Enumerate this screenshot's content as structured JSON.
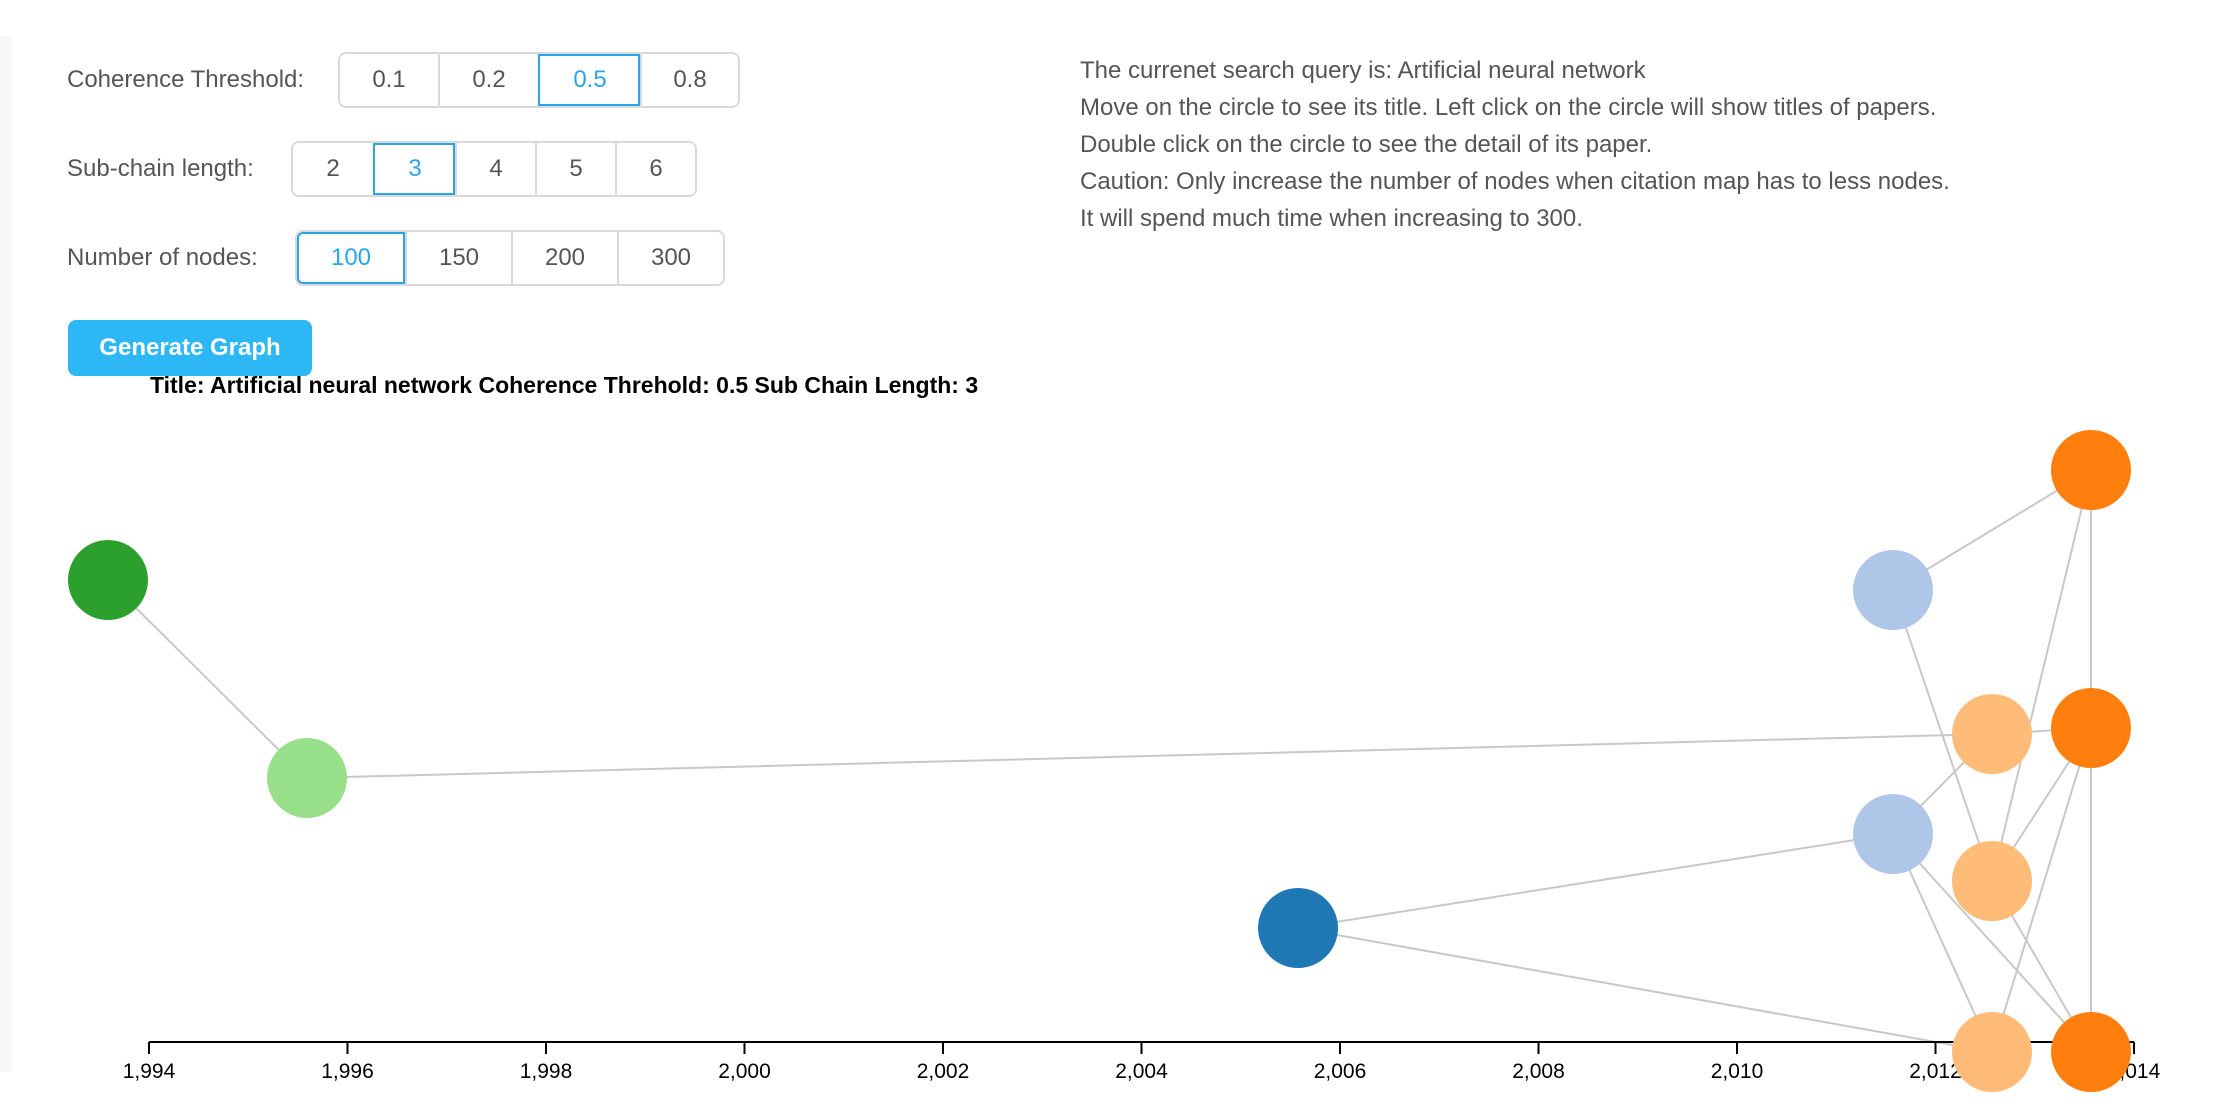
{
  "controls": {
    "coherence": {
      "label": "Coherence Threshold:",
      "options": [
        "0.1",
        "0.2",
        "0.5",
        "0.8"
      ],
      "selected": "0.5"
    },
    "subchain": {
      "label": "Sub-chain length:",
      "options": [
        "2",
        "3",
        "4",
        "5",
        "6"
      ],
      "selected": "3"
    },
    "nodes": {
      "label": "Number of nodes:",
      "options": [
        "100",
        "150",
        "200",
        "300"
      ],
      "selected": "100"
    },
    "generate_label": "Generate Graph"
  },
  "info": {
    "lines": [
      "The currenet search query is: Artificial neural network",
      "Move on the circle to see its title. Left click on the circle will show titles of papers.",
      "Double click on the circle to see the detail of its paper.",
      "Caution: Only increase the number of nodes when citation map has to less nodes.",
      "It will spend much time when increasing to 300."
    ]
  },
  "graph": {
    "title": "Title: Artificial neural network Coherence Threhold: 0.5 Sub Chain Length: 3",
    "x_ticks": [
      "1,994",
      "1,996",
      "1,998",
      "2,000",
      "2,002",
      "2,004",
      "2,006",
      "2,008",
      "2,010",
      "2,012",
      "2,014"
    ],
    "edge_color": "#c8c8c8",
    "colors": {
      "dark-green": "#2ca02c",
      "light-green": "#98df8a",
      "dark-blue": "#1f77b4",
      "light-blue": "#aec7e8",
      "orange": "#ff7f0e",
      "light-orange": "#ffbb78"
    }
  }
}
